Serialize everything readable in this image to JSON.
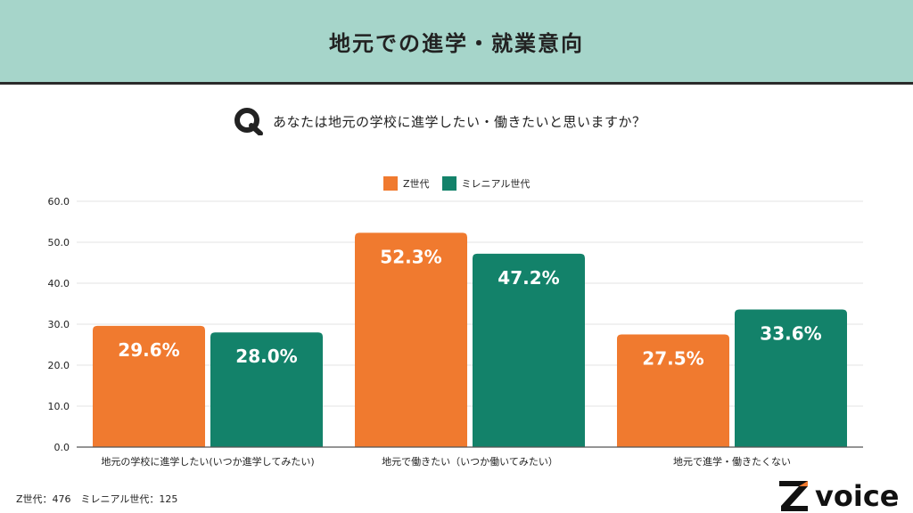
{
  "header": {
    "title": "地元での進学・就業意向"
  },
  "question": {
    "text": "あなたは地元の学校に進学したい・働きたいと思いますか？"
  },
  "footnote": "Z世代：476　ミレニアル世代：125",
  "logo": {
    "text": "voice"
  },
  "colors": {
    "series1": "#f07a2f",
    "series2": "#13826a",
    "header_bg": "#a6d5ca",
    "grid": "#e3e3e3"
  },
  "chart_data": {
    "type": "bar",
    "categories": [
      "地元の学校に進学したい(いつか進学してみたい)",
      "地元で働きたい（いつか働いてみたい）",
      "地元で進学・働きたくない"
    ],
    "series": [
      {
        "name": "Z世代",
        "values": [
          29.6,
          52.3,
          27.5
        ],
        "labels": [
          "29.6%",
          "52.3%",
          "27.5%"
        ]
      },
      {
        "name": "ミレニアル世代",
        "values": [
          28.0,
          47.2,
          33.6
        ],
        "labels": [
          "28.0%",
          "47.2%",
          "33.6%"
        ]
      }
    ],
    "ylim": [
      0,
      60
    ],
    "yticks": [
      "0.0",
      "10.0",
      "20.0",
      "30.0",
      "40.0",
      "50.0",
      "60.0"
    ],
    "grid": true,
    "legend": "top-center"
  }
}
